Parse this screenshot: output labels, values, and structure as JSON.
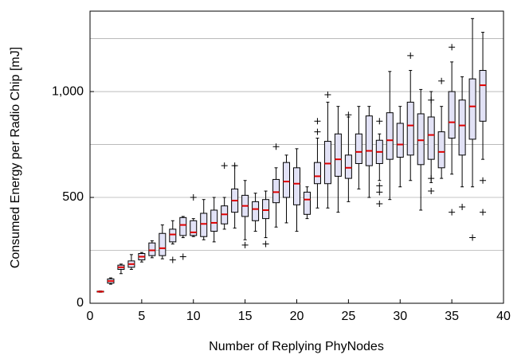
{
  "chart_data": {
    "type": "boxplot",
    "xlabel": "Number of Replying PhyNodes",
    "ylabel": "Consumed Energy per Radio Chip [mJ]",
    "xlim": [
      0,
      40
    ],
    "xticks": [
      0,
      5,
      10,
      15,
      20,
      25,
      30,
      35,
      40
    ],
    "ylim": [
      0,
      1380
    ],
    "yticks": [
      0,
      500,
      {
        "value": 1000,
        "label": "1,000"
      }
    ],
    "minor_grid": [
      250,
      750,
      1250
    ],
    "grid": true,
    "box_color": "#e2e2f6",
    "median_color": "#e00000",
    "x": [
      1,
      2,
      3,
      4,
      5,
      6,
      7,
      8,
      9,
      10,
      11,
      12,
      13,
      14,
      15,
      16,
      17,
      18,
      19,
      20,
      21,
      22,
      23,
      24,
      25,
      26,
      27,
      28,
      29,
      30,
      31,
      32,
      33,
      34,
      35,
      36,
      37,
      38
    ],
    "whislo": [
      52,
      90,
      140,
      160,
      195,
      215,
      210,
      280,
      310,
      315,
      300,
      290,
      350,
      355,
      300,
      340,
      310,
      360,
      380,
      340,
      400,
      450,
      450,
      430,
      480,
      540,
      500,
      580,
      490,
      550,
      580,
      440,
      570,
      590,
      610,
      550,
      550,
      680
    ],
    "q1": [
      53,
      95,
      160,
      170,
      205,
      225,
      225,
      290,
      320,
      320,
      315,
      340,
      375,
      430,
      410,
      390,
      400,
      475,
      500,
      465,
      420,
      565,
      565,
      600,
      590,
      660,
      650,
      660,
      680,
      690,
      700,
      655,
      680,
      640,
      780,
      700,
      775,
      860
    ],
    "median": [
      55,
      105,
      170,
      185,
      220,
      250,
      260,
      325,
      370,
      335,
      375,
      380,
      420,
      485,
      460,
      445,
      440,
      525,
      575,
      565,
      490,
      600,
      660,
      680,
      640,
      715,
      720,
      715,
      770,
      750,
      840,
      770,
      795,
      715,
      855,
      840,
      930,
      1030
    ],
    "q3": [
      57,
      115,
      180,
      200,
      235,
      285,
      330,
      350,
      405,
      390,
      425,
      440,
      460,
      540,
      510,
      480,
      490,
      585,
      665,
      640,
      525,
      665,
      765,
      800,
      700,
      800,
      885,
      770,
      900,
      850,
      950,
      895,
      880,
      810,
      1000,
      960,
      1060,
      1100
    ],
    "whishi": [
      58,
      120,
      185,
      230,
      240,
      295,
      370,
      390,
      410,
      400,
      490,
      500,
      500,
      650,
      580,
      520,
      530,
      640,
      700,
      730,
      550,
      780,
      950,
      930,
      880,
      930,
      930,
      800,
      1095,
      930,
      1100,
      1010,
      1000,
      930,
      1140,
      1070,
      1345,
      1280
    ],
    "outliers": [
      [],
      [],
      [],
      [],
      [],
      [],
      [],
      [
        205
      ],
      [
        220
      ],
      [
        500
      ],
      [],
      [],
      [
        650
      ],
      [
        650
      ],
      [
        275
      ],
      [],
      [
        280
      ],
      [
        740
      ],
      [],
      [],
      [],
      [
        810,
        860
      ],
      [
        985
      ],
      [],
      [
        890
      ],
      [],
      [],
      [
        860,
        555,
        525,
        470
      ],
      [],
      [],
      [
        1170
      ],
      [],
      [
        960,
        530,
        590
      ],
      [
        1050
      ],
      [
        1210,
        430
      ],
      [
        455
      ],
      [
        310
      ],
      [
        580,
        430
      ]
    ]
  }
}
